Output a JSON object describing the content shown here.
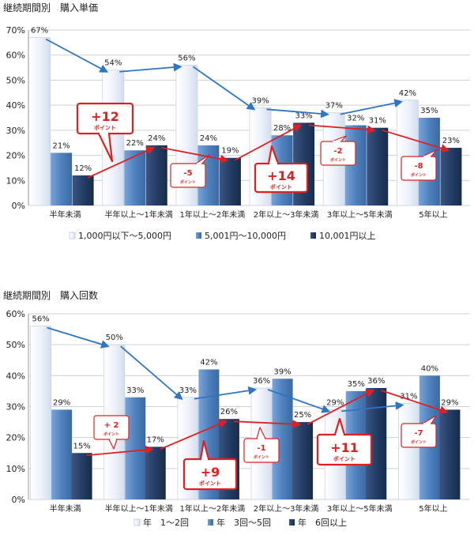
{
  "chart_data": [
    {
      "type": "bar",
      "title": "継続期間別　購入単価",
      "categories": [
        "半年未満",
        "半年以上～1年未満",
        "1年以上～2年未満",
        "2年以上～3年未満",
        "3年以上～5年未満",
        "5年以上"
      ],
      "ylim": [
        0,
        70
      ],
      "yticks": [
        "0%",
        "10%",
        "20%",
        "30%",
        "40%",
        "50%",
        "60%",
        "70%"
      ],
      "series": [
        {
          "name": "1,000円以下～5,000円",
          "values": [
            67,
            54,
            56,
            39,
            37,
            42
          ],
          "color": "#e9eef8",
          "labels": [
            "67%",
            "54%",
            "56%",
            "39%",
            "37%",
            "42%"
          ]
        },
        {
          "name": "5,001円～10,000円",
          "values": [
            21,
            22,
            24,
            28,
            32,
            35
          ],
          "color": "#4f81bd",
          "labels": [
            "21%",
            "22%",
            "24%",
            "28%",
            "32%",
            "35%"
          ]
        },
        {
          "name": "10,001円以上",
          "values": [
            12,
            24,
            19,
            33,
            31,
            23
          ],
          "color": "#1f3864",
          "labels": [
            "12%",
            "24%",
            "19%",
            "33%",
            "31%",
            "23%"
          ]
        }
      ],
      "callouts": [
        {
          "value": "+12",
          "unit": "ポイント"
        },
        {
          "value": "-5",
          "unit": "ポイント"
        },
        {
          "value": "+14",
          "unit": "ポイント"
        },
        {
          "value": "-2",
          "unit": "ポイント"
        },
        {
          "value": "-8",
          "unit": "ポイント"
        }
      ]
    },
    {
      "type": "bar",
      "title": "継続期間別　購入回数",
      "categories": [
        "半年未満",
        "半年以上～1年未満",
        "1年以上～2年未満",
        "2年以上～3年未満",
        "3年以上～5年未満",
        "5年以上"
      ],
      "ylim": [
        0,
        60
      ],
      "yticks": [
        "0%",
        "10%",
        "20%",
        "30%",
        "40%",
        "50%",
        "60%"
      ],
      "series": [
        {
          "name": "年　1～2回",
          "values": [
            56,
            50,
            33,
            36,
            29,
            31
          ],
          "color": "#e9eef8",
          "labels": [
            "56%",
            "50%",
            "33%",
            "36%",
            "29%",
            "31%"
          ]
        },
        {
          "name": "年　3回～5回",
          "values": [
            29,
            33,
            42,
            39,
            35,
            40
          ],
          "color": "#4f81bd",
          "labels": [
            "29%",
            "33%",
            "42%",
            "39%",
            "35%",
            "40%"
          ]
        },
        {
          "name": "年　6回以上",
          "values": [
            15,
            17,
            26,
            25,
            36,
            29
          ],
          "color": "#1f3864",
          "labels": [
            "15%",
            "17%",
            "26%",
            "25%",
            "36%",
            "29%"
          ]
        }
      ],
      "callouts": [
        {
          "value": "+ 2",
          "unit": "ポイント"
        },
        {
          "value": "+9",
          "unit": "ポイント"
        },
        {
          "value": "-1",
          "unit": "ポイント"
        },
        {
          "value": "+11",
          "unit": "ポイント"
        },
        {
          "value": "-7",
          "unit": "ポイント"
        }
      ]
    }
  ]
}
